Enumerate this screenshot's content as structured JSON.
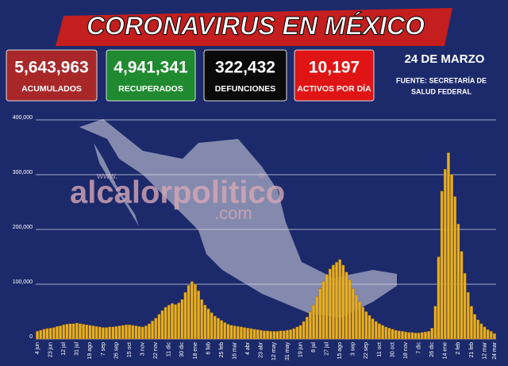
{
  "header": {
    "title": "CORONAVIRUS EN MÉXICO"
  },
  "stats": [
    {
      "value": "5,643,963",
      "label": "ACUMULADOS"
    },
    {
      "value": "4,941,341",
      "label": "RECUPERADOS"
    },
    {
      "value": "322,432",
      "label": "DEFUNCIONES"
    },
    {
      "value": "10,197",
      "label": "ACTIVOS POR DÍA"
    }
  ],
  "date": "24 DE MARZO",
  "source": [
    "FUENTE: SECRETARÍA DE",
    "SALUD FEDERAL"
  ],
  "watermark": {
    "prefix": "www.",
    "name": "alcalorpolitico",
    "mark": "®",
    "domain": ".com"
  },
  "chart_data": {
    "type": "bar",
    "color": "#e8b020",
    "categories": [
      "4 jun",
      null,
      null,
      null,
      "23 jun",
      null,
      null,
      null,
      "12 jul",
      null,
      null,
      null,
      "31 jul",
      null,
      null,
      null,
      "19 ago",
      null,
      null,
      null,
      "7 sep",
      null,
      null,
      null,
      "26 sep",
      null,
      null,
      null,
      "15 oct",
      null,
      null,
      null,
      "3 nov",
      null,
      null,
      null,
      "22 nov",
      null,
      null,
      null,
      "11 dic",
      null,
      null,
      null,
      "30 dic",
      null,
      null,
      null,
      "18 ene",
      null,
      null,
      null,
      "6 feb",
      null,
      null,
      null,
      "25 feb",
      null,
      null,
      null,
      "16 mar",
      null,
      null,
      null,
      "4 abr",
      null,
      null,
      null,
      "23 abr",
      null,
      null,
      null,
      "12 may",
      null,
      null,
      null,
      "31 may",
      null,
      null,
      null,
      "19 jun",
      null,
      null,
      null,
      "8 jul",
      null,
      null,
      null,
      "27 jul",
      null,
      null,
      null,
      "15 ago",
      null,
      null,
      null,
      "3 sep",
      null,
      null,
      null,
      "22 sep",
      null,
      null,
      null,
      "11 oct",
      null,
      null,
      null,
      "30 oct",
      null,
      null,
      null,
      "18 nov",
      null,
      null,
      null,
      "7 dic",
      null,
      null,
      null,
      "26 dic",
      null,
      null,
      null,
      "14 ene",
      null,
      null,
      null,
      "2 feb",
      null,
      null,
      null,
      "21 feb",
      null,
      null,
      null,
      "12 mar",
      null,
      null,
      "24 mar"
    ],
    "values": [
      14000,
      16000,
      18000,
      19000,
      20000,
      21000,
      23000,
      24000,
      26000,
      27000,
      28000,
      28000,
      29000,
      28000,
      27000,
      26000,
      25000,
      24000,
      23000,
      22000,
      21000,
      21000,
      22000,
      22000,
      23000,
      24000,
      25000,
      26000,
      26000,
      25000,
      24000,
      23000,
      22000,
      24000,
      28000,
      33000,
      38000,
      45000,
      52000,
      58000,
      62000,
      65000,
      63000,
      66000,
      72000,
      85000,
      98000,
      105000,
      100000,
      88000,
      72000,
      62000,
      55000,
      48000,
      42000,
      38000,
      34000,
      30000,
      27000,
      25000,
      24000,
      23000,
      22000,
      21000,
      20000,
      19000,
      18000,
      17000,
      16000,
      15000,
      15000,
      14000,
      14000,
      14000,
      15000,
      15000,
      16000,
      17000,
      19000,
      22000,
      25000,
      32000,
      40000,
      50000,
      62000,
      78000,
      92000,
      105000,
      118000,
      128000,
      135000,
      140000,
      145000,
      135000,
      122000,
      108000,
      92000,
      80000,
      68000,
      58000,
      50000,
      43000,
      37000,
      32000,
      28000,
      25000,
      22000,
      20000,
      18000,
      16000,
      15000,
      14000,
      13000,
      12000,
      12000,
      11000,
      11000,
      12000,
      13000,
      14000,
      20000,
      60000,
      150000,
      270000,
      310000,
      340000,
      300000,
      260000,
      210000,
      160000,
      120000,
      85000,
      60000,
      45000,
      35000,
      28000,
      22000,
      17000,
      14000,
      10000
    ],
    "ylim": [
      0,
      400000
    ],
    "yticks": [
      0,
      {
        "value": 100000,
        "label": "100,000"
      },
      {
        "value": 200000,
        "label": "200,000"
      },
      {
        "value": 300000,
        "label": "300,000"
      },
      {
        "value": 400000,
        "label": "400,000"
      }
    ],
    "grid": true
  }
}
